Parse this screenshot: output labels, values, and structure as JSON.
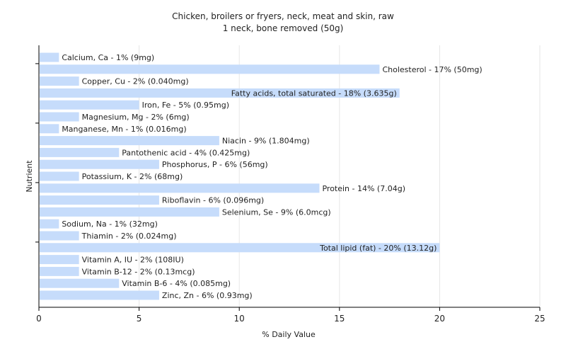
{
  "chart_data": {
    "type": "bar",
    "orientation": "horizontal",
    "title": "Chicken, broilers or fryers, neck, meat and skin, raw",
    "subtitle": "1 neck, bone removed (50g)",
    "xlabel": "% Daily Value",
    "ylabel": "Nutrient",
    "xlim": [
      0,
      25
    ],
    "xticks": [
      0,
      5,
      10,
      15,
      20,
      25
    ],
    "grid": true,
    "bar_color": "#c6dcfb",
    "categories": [
      "Calcium, Ca",
      "Cholesterol",
      "Copper, Cu",
      "Fatty acids, total saturated",
      "Iron, Fe",
      "Magnesium, Mg",
      "Manganese, Mn",
      "Niacin",
      "Pantothenic acid",
      "Phosphorus, P",
      "Potassium, K",
      "Protein",
      "Riboflavin",
      "Selenium, Se",
      "Sodium, Na",
      "Thiamin",
      "Total lipid (fat)",
      "Vitamin A, IU",
      "Vitamin B-12",
      "Vitamin B-6",
      "Zinc, Zn"
    ],
    "values": [
      1,
      17,
      2,
      18,
      5,
      2,
      1,
      9,
      4,
      6,
      2,
      14,
      6,
      9,
      1,
      2,
      20,
      2,
      2,
      4,
      6
    ],
    "labels": [
      "Calcium, Ca - 1% (9mg)",
      "Cholesterol - 17% (50mg)",
      "Copper, Cu - 2% (0.040mg)",
      "Fatty acids, total saturated - 18% (3.635g)",
      "Iron, Fe - 5% (0.95mg)",
      "Magnesium, Mg - 2% (6mg)",
      "Manganese, Mn - 1% (0.016mg)",
      "Niacin - 9% (1.804mg)",
      "Pantothenic acid - 4% (0.425mg)",
      "Phosphorus, P - 6% (56mg)",
      "Potassium, K - 2% (68mg)",
      "Protein - 14% (7.04g)",
      "Riboflavin - 6% (0.096mg)",
      "Selenium, Se - 9% (6.0mcg)",
      "Sodium, Na - 1% (32mg)",
      "Thiamin - 2% (0.024mg)",
      "Total lipid (fat) - 20% (13.12g)",
      "Vitamin A, IU - 2% (108IU)",
      "Vitamin B-12 - 2% (0.13mcg)",
      "Vitamin B-6 - 4% (0.085mg)",
      "Zinc, Zn - 6% (0.93mg)"
    ]
  }
}
